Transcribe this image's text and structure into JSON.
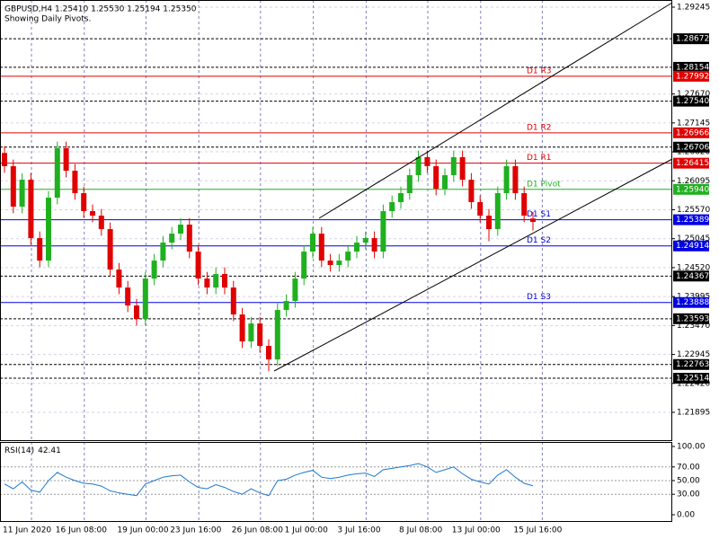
{
  "chart_data": [
    {
      "type": "candlestick",
      "title": "GBPUSD,H4  1.25410 1.25530 1.25194 1.25350",
      "subtitle": "Showing Daily Pivots.",
      "categories": [
        "11 Jun 2020",
        null,
        null,
        null,
        null,
        null,
        "16 Jun 08:00",
        null,
        null,
        null,
        null,
        null,
        null,
        "19 Jun 00:00",
        null,
        null,
        null,
        null,
        null,
        "23 Jun 16:00",
        null,
        null,
        null,
        null,
        null,
        null,
        "26 Jun 08:00",
        null,
        null,
        null,
        null,
        null,
        "1 Jul 00:00",
        null,
        null,
        null,
        null,
        null,
        "3 Jul 16:00",
        null,
        null,
        null,
        null,
        null,
        null,
        "8 Jul 08:00",
        null,
        null,
        null,
        null,
        null,
        "13 Jul 00:00",
        null,
        null,
        null,
        null,
        null,
        null,
        "15 Jul 16:00",
        null,
        null
      ],
      "open": [
        1.266,
        1.2636,
        1.25626,
        1.26115,
        1.25056,
        1.24648,
        1.25789,
        1.26686,
        1.26278,
        1.25871,
        1.25545,
        1.25463,
        1.25219,
        1.24485,
        1.24159,
        1.23833,
        1.23589,
        1.24322,
        1.24648,
        1.24974,
        1.25137,
        1.253,
        1.24811,
        1.24322,
        1.24159,
        1.24404,
        1.24159,
        1.2367,
        1.23181,
        1.23507,
        1.231,
        1.22855,
        1.23752,
        1.23915,
        1.24322,
        1.24811,
        1.25137,
        1.24648,
        1.24567,
        1.24648,
        1.24811,
        1.24974,
        1.25056,
        1.24811,
        1.25545,
        1.25708,
        1.25871,
        1.26197,
        1.26523,
        1.2636,
        1.25952,
        1.26197,
        1.26523,
        1.26115,
        1.25708,
        1.25463,
        1.25219,
        1.25871,
        1.2636,
        1.25871,
        1.2541
      ],
      "high": [
        1.2672,
        1.2648,
        1.26235,
        1.26235,
        1.25176,
        1.25909,
        1.26806,
        1.26806,
        1.26398,
        1.25991,
        1.25665,
        1.25583,
        1.25339,
        1.24605,
        1.24279,
        1.23953,
        1.24442,
        1.24768,
        1.25094,
        1.25257,
        1.2542,
        1.2542,
        1.24931,
        1.24442,
        1.24524,
        1.24524,
        1.24279,
        1.2379,
        1.23627,
        1.23627,
        1.2322,
        1.23872,
        1.24035,
        1.24442,
        1.24931,
        1.25257,
        1.25257,
        1.24768,
        1.24768,
        1.24931,
        1.25094,
        1.25176,
        1.25176,
        1.25665,
        1.25828,
        1.25991,
        1.26317,
        1.26643,
        1.26643,
        1.2648,
        1.26317,
        1.26643,
        1.26643,
        1.26235,
        1.25828,
        1.25583,
        1.25991,
        1.2648,
        1.2648,
        1.25991,
        1.2553
      ],
      "low": [
        1.2624,
        1.25506,
        1.25506,
        1.24936,
        1.24528,
        1.24528,
        1.25669,
        1.26158,
        1.25751,
        1.25425,
        1.25343,
        1.25099,
        1.24365,
        1.24039,
        1.23713,
        1.23469,
        1.23469,
        1.24202,
        1.24528,
        1.24854,
        1.25017,
        1.24691,
        1.24202,
        1.24039,
        1.24039,
        1.24039,
        1.2355,
        1.23061,
        1.23061,
        1.2298,
        1.2264,
        1.22735,
        1.23632,
        1.23795,
        1.24202,
        1.24691,
        1.24528,
        1.24447,
        1.24447,
        1.24528,
        1.24691,
        1.24854,
        1.24691,
        1.24691,
        1.25425,
        1.25588,
        1.25751,
        1.26077,
        1.2624,
        1.25832,
        1.25832,
        1.26077,
        1.25995,
        1.25588,
        1.25343,
        1.24999,
        1.25099,
        1.25751,
        1.25751,
        1.25343,
        1.25194
      ],
      "close": [
        1.2636,
        1.25626,
        1.26115,
        1.25056,
        1.24648,
        1.25789,
        1.26686,
        1.26278,
        1.25871,
        1.25545,
        1.25463,
        1.25219,
        1.24485,
        1.24159,
        1.23833,
        1.23589,
        1.24322,
        1.24648,
        1.24974,
        1.25137,
        1.253,
        1.24811,
        1.24322,
        1.24159,
        1.24404,
        1.24159,
        1.2367,
        1.23181,
        1.23507,
        1.231,
        1.22855,
        1.23752,
        1.23915,
        1.24322,
        1.24811,
        1.25137,
        1.24648,
        1.24567,
        1.24648,
        1.24811,
        1.24974,
        1.25056,
        1.24811,
        1.25545,
        1.25708,
        1.25871,
        1.26197,
        1.26523,
        1.2636,
        1.25952,
        1.26197,
        1.26523,
        1.26115,
        1.25708,
        1.25463,
        1.25219,
        1.25871,
        1.2636,
        1.25871,
        1.25463,
        1.2535
      ],
      "up_color": "#1fb01f",
      "down_color": "#e00000",
      "ylim": [
        1.2139,
        1.29375
      ],
      "yticks": [
        1.29245,
        {
          "value": 1.2767,
          "label": "1.27670"
        },
        1.27145,
        {
          "value": 1.2662,
          "label": "1.26620"
        },
        1.26095,
        {
          "value": 1.2557,
          "label": "1.25570"
        },
        1.25045,
        {
          "value": 1.2452,
          "label": "1.24520"
        },
        1.23995,
        {
          "value": 1.2347,
          "label": "1.23470"
        },
        1.22945,
        {
          "value": 1.2242,
          "label": "1.22420"
        },
        1.21895
      ],
      "grid": true,
      "pivots": [
        {
          "name": "D1 R3",
          "value": 1.27992,
          "color": "#e00000"
        },
        {
          "name": "D1 R2",
          "value": 1.26966,
          "color": "#e00000"
        },
        {
          "name": "D1 R1",
          "value": 1.26415,
          "color": "#e00000"
        },
        {
          "name": "D1 Pivot",
          "value": 1.2594,
          "value_label": "1.25940",
          "color": "#1fb01f"
        },
        {
          "name": "D1 S1",
          "value": 1.25389,
          "color": "#0000e0"
        },
        {
          "name": "D1 S2",
          "value": 1.24914,
          "color": "#0000e0"
        },
        {
          "name": "D1 S3",
          "value": 1.23888,
          "color": "#0000e0"
        }
      ],
      "levels": [
        1.28672,
        1.28154,
        {
          "value": 1.2754,
          "label": "1.27540"
        },
        1.26706,
        1.24367,
        1.23593,
        1.22763,
        1.22514
      ]
    },
    {
      "type": "line",
      "series": [
        {
          "name": "RSI(14)",
          "color": "#1e78d0",
          "values": [
            45,
            38,
            48,
            36,
            33,
            50,
            62,
            55,
            50,
            46,
            45,
            42,
            35,
            32,
            30,
            28,
            45,
            50,
            55,
            57,
            58,
            48,
            40,
            38,
            44,
            40,
            34,
            30,
            38,
            32,
            28,
            50,
            52,
            58,
            62,
            65,
            55,
            53,
            55,
            58,
            60,
            61,
            56,
            66,
            68,
            70,
            72,
            75,
            70,
            62,
            66,
            70,
            60,
            52,
            48,
            45,
            58,
            66,
            55,
            46,
            42.41
          ]
        }
      ],
      "ylim": [
        0,
        100
      ],
      "yticks": [
        {
          "value": 100,
          "label": "100.00"
        },
        {
          "value": 70,
          "label": "70.00"
        },
        {
          "value": 50,
          "label": "50.00"
        },
        {
          "value": 30,
          "label": "30.00"
        },
        {
          "value": 0,
          "label": "0.00"
        }
      ],
      "grid": true
    }
  ]
}
